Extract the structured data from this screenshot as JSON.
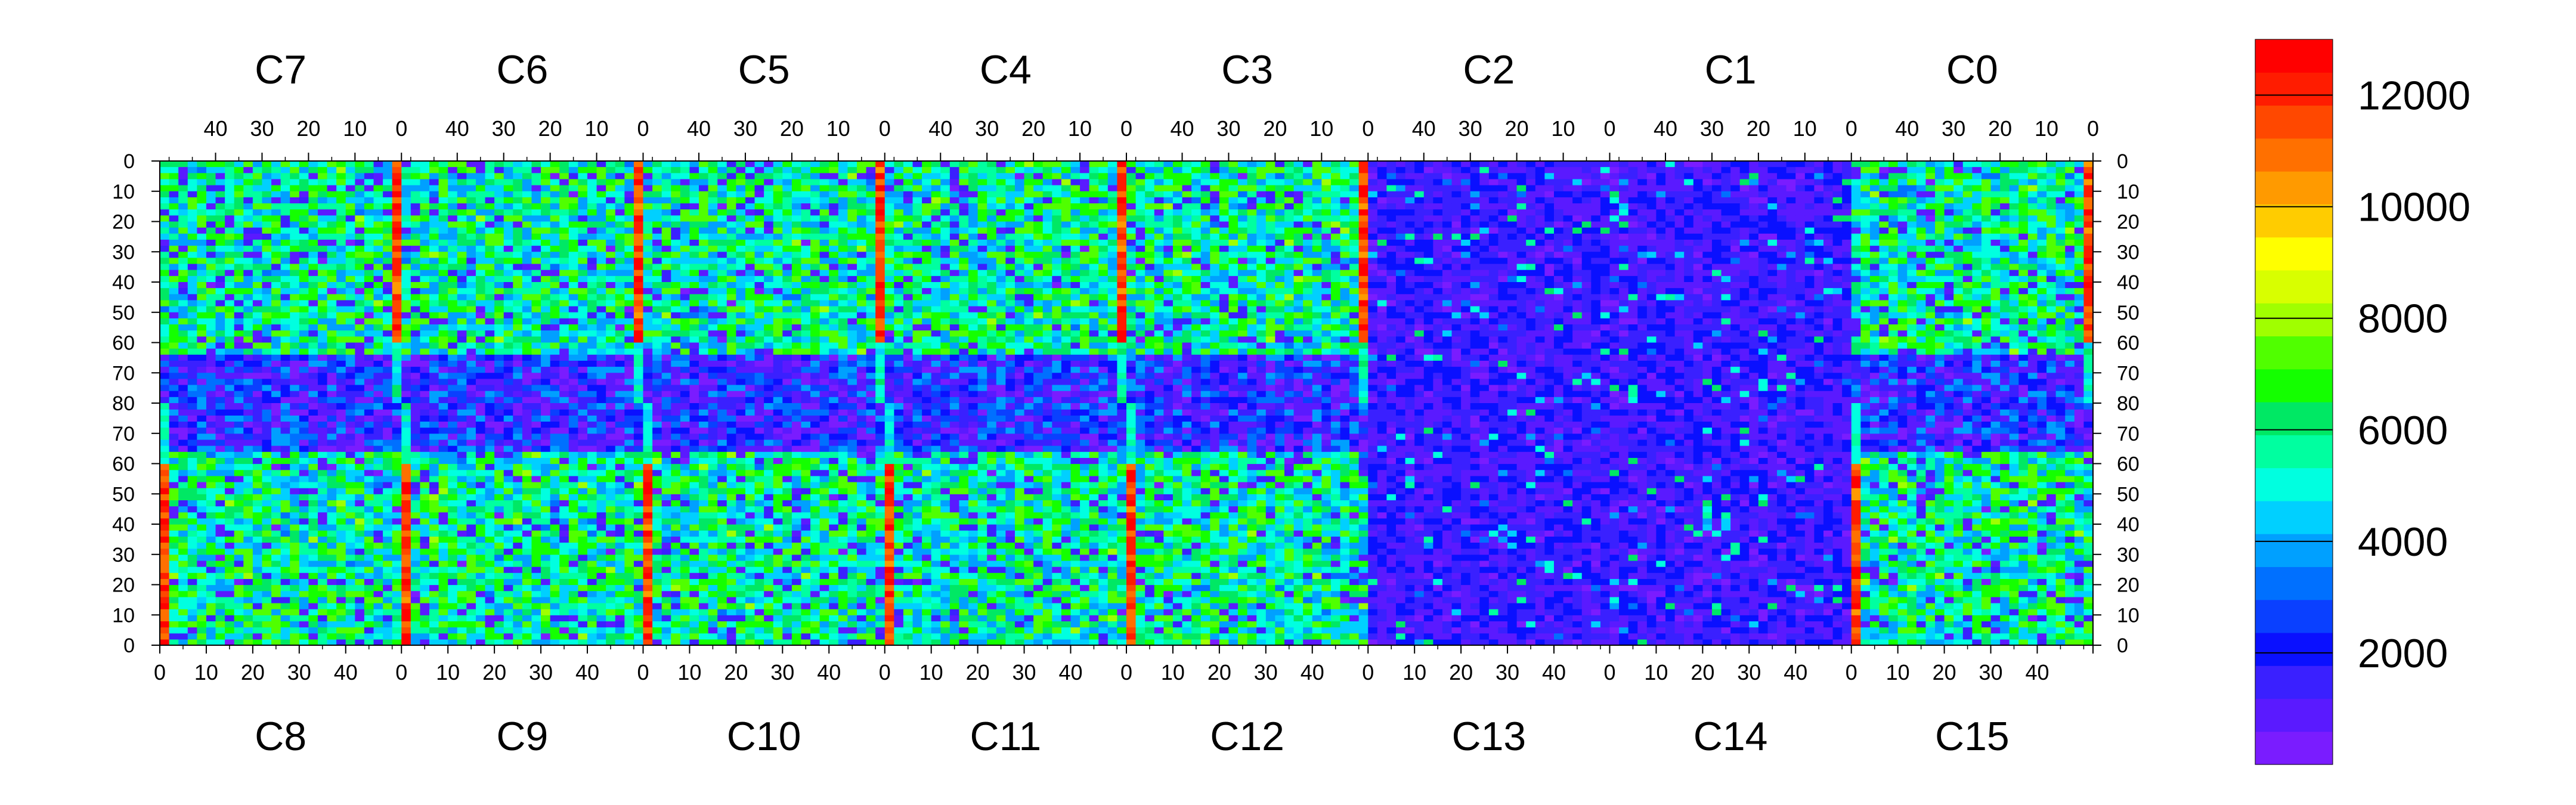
{
  "chart_data": {
    "type": "heatmap",
    "top_chip_labels": [
      "C7",
      "C6",
      "C5",
      "C4",
      "C3",
      "C2",
      "C1",
      "C0"
    ],
    "bottom_chip_labels": [
      "C8",
      "C9",
      "C10",
      "C11",
      "C12",
      "C13",
      "C14",
      "C15"
    ],
    "top_axis_tick_labels": [
      "40",
      "30",
      "20",
      "10",
      "0"
    ],
    "bottom_axis_tick_labels": [
      "0",
      "10",
      "20",
      "30",
      "40"
    ],
    "left_axis_tick_labels": [
      "0",
      "10",
      "20",
      "30",
      "40",
      "50",
      "60",
      "70",
      "80",
      "70",
      "60",
      "50",
      "40",
      "30",
      "20",
      "10",
      "0"
    ],
    "right_axis_tick_labels": [
      "0",
      "10",
      "20",
      "30",
      "40",
      "50",
      "60",
      "70",
      "80",
      "70",
      "60",
      "50",
      "40",
      "30",
      "20",
      "10",
      "0"
    ],
    "colorbar": {
      "tick_labels": [
        "2000",
        "4000",
        "6000",
        "8000",
        "10000",
        "12000"
      ],
      "range": [
        0,
        13000
      ],
      "colors": [
        "#7a1cff",
        "#5a1aff",
        "#3a20ff",
        "#0a10ff",
        "#0a40ff",
        "#0070ff",
        "#00a0ff",
        "#00d0ff",
        "#00ffe0",
        "#00ffa0",
        "#00e864",
        "#14ff00",
        "#50ff00",
        "#a0ff00",
        "#d8ff00",
        "#ffff00",
        "#ffcc00",
        "#ff9a00",
        "#ff7000",
        "#ff4800",
        "#ff1c00",
        "#ff0000"
      ]
    },
    "grid": "per-chip 52 x 80 cells, 16 chips in 2 rows of 8",
    "structure": {
      "columns_per_chip": 52,
      "rows_per_half": 80,
      "chips_per_row": 8,
      "low_occupancy_chips": [
        "C13",
        "C14",
        "C2",
        "C1"
      ]
    }
  }
}
